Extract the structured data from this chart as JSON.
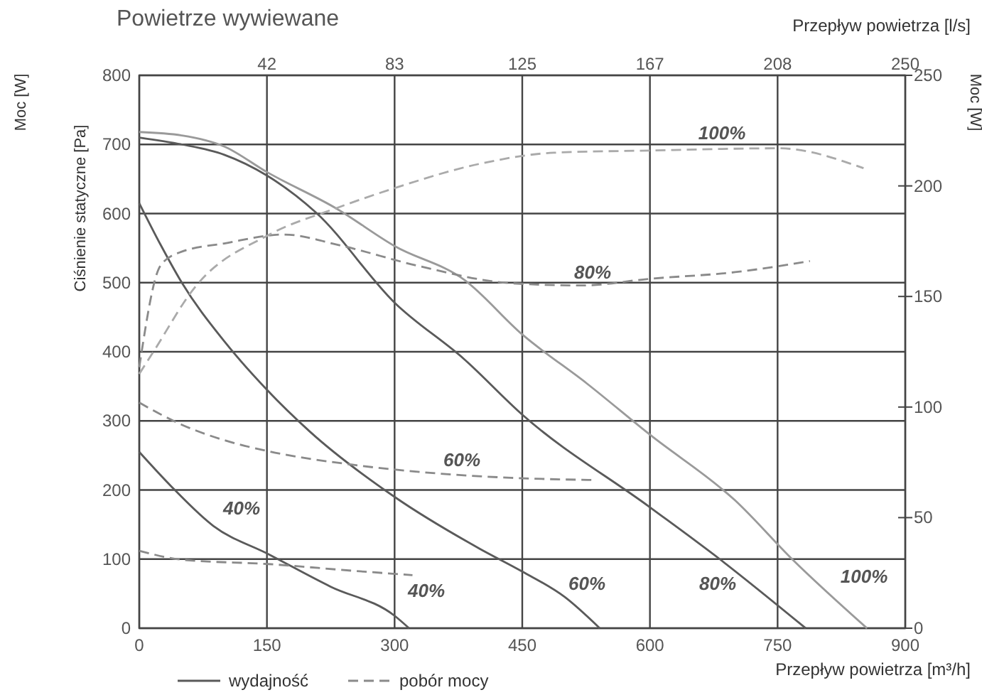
{
  "chart_data": {
    "type": "line",
    "title": "Powietrze wywiewane",
    "xlabel": "Przepływ powietrza [m³/h]",
    "x2label": "Przepływ powietrza [l/s]",
    "ylabel": "Ciśnienie statyczne [Pa]",
    "y2label": "Moc [W]",
    "xlim": [
      0,
      900
    ],
    "xticks": [
      0,
      150,
      300,
      450,
      600,
      750,
      900
    ],
    "x2lim": [
      0,
      250
    ],
    "x2ticks": [
      {
        "value": 41.67,
        "label": "42"
      },
      {
        "value": 83.33,
        "label": "83"
      },
      125,
      {
        "value": 166.67,
        "label": "167"
      },
      {
        "value": 208.33,
        "label": "208"
      },
      250
    ],
    "ylim": [
      0,
      800
    ],
    "yticks": [
      0,
      100,
      200,
      300,
      400,
      500,
      600,
      700,
      800
    ],
    "y2lim": [
      0,
      250
    ],
    "y2ticks": [
      0,
      50,
      100,
      150,
      200,
      250
    ],
    "grid": true,
    "legend": "bottom left",
    "marker": "none",
    "series": [
      {
        "name": "wydajność",
        "color": "#5a5a5a",
        "line_style": "solid",
        "x": [
          0,
          50,
          100,
          150,
          208,
          300,
          382,
          450,
          600,
          682,
          783
        ],
        "values": [
          710,
          700,
          685,
          655,
          601,
          471,
          389,
          309,
          175,
          100,
          0
        ]
      },
      {
        "color": "#9a9a9a",
        "line_style": "solid",
        "x": [
          0,
          50,
          100,
          150,
          232,
          300,
          382,
          450,
          526,
          600,
          700,
          767,
          855
        ],
        "values": [
          718,
          713,
          697,
          660,
          607,
          553,
          504,
          425,
          354,
          280,
          185,
          100,
          0
        ]
      },
      {
        "color": "#5a5a5a",
        "line_style": "solid",
        "x": [
          0,
          25,
          50,
          100,
          150,
          200,
          300,
          400,
          450,
          500,
          541
        ],
        "values": [
          615,
          555,
          500,
          415,
          345,
          285,
          190,
          115,
          82,
          45,
          0
        ]
      },
      {
        "color": "#5a5a5a",
        "line_style": "solid",
        "x": [
          0,
          37,
          87,
          152,
          225,
          300,
          317
        ],
        "values": [
          255,
          206,
          148,
          107,
          60,
          18,
          0
        ]
      },
      {
        "name": "pobór mocy",
        "color": "#8a8a8a",
        "line_style": "dashed",
        "axis": "y2",
        "x": [
          0,
          25,
          48,
          100,
          170,
          237,
          326,
          437,
          520,
          600,
          700,
          788
        ],
        "values": [
          118,
          164,
          170,
          174,
          178,
          173,
          164,
          156,
          155,
          158,
          161,
          166
        ]
      },
      {
        "color": "#aaaaaa",
        "line_style": "dashed",
        "axis": "y2",
        "x": [
          0,
          15,
          65,
          153,
          232,
          300,
          400,
          487,
          600,
          751,
          851
        ],
        "values": [
          115,
          124,
          154,
          178,
          190,
          199,
          210,
          215,
          216,
          217,
          208
        ]
      },
      {
        "color": "#8a8a8a",
        "line_style": "dashed",
        "axis": "y2",
        "x": [
          0,
          50,
          100,
          152,
          249,
          350,
          437,
          535
        ],
        "values": [
          102,
          92,
          85,
          80,
          74,
          70,
          68,
          67
        ]
      },
      {
        "color": "#8a8a8a",
        "line_style": "dashed",
        "axis": "y2",
        "x": [
          0,
          50,
          152,
          250,
          321
        ],
        "values": [
          35,
          31,
          29,
          26,
          24
        ]
      }
    ],
    "annotations": [
      "Moc [W]",
      "80%",
      "100%",
      "60%",
      "40%",
      "80%",
      "100%",
      "60%",
      "40%"
    ]
  }
}
